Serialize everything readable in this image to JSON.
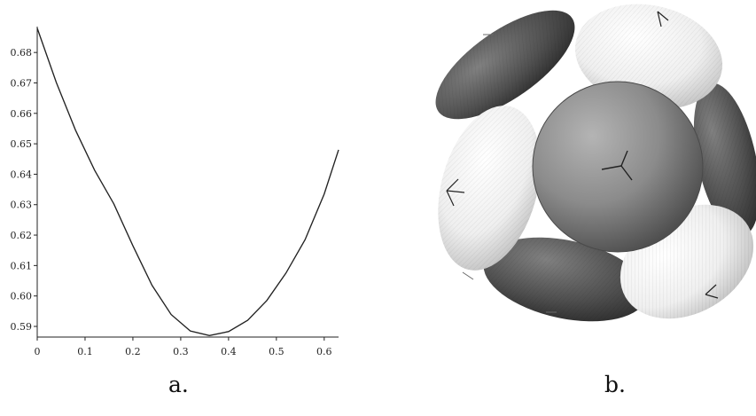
{
  "figure": {
    "panels": [
      {
        "caption": "a.",
        "chart_data": {
          "type": "line",
          "title": "",
          "xlabel": "",
          "ylabel": "",
          "xlim": [
            0,
            0.63
          ],
          "ylim": [
            0.5865,
            0.6885
          ],
          "x_ticks": [
            0,
            0.1,
            0.2,
            0.3,
            0.4,
            0.5,
            0.6
          ],
          "x_tick_labels": [
            "0",
            "0.1",
            "0.2",
            "0.3",
            "0.4",
            "0.5",
            "0.6"
          ],
          "y_ticks": [
            0.59,
            0.6,
            0.61,
            0.62,
            0.63,
            0.64,
            0.65,
            0.66,
            0.67,
            0.68
          ],
          "y_tick_labels": [
            "0.59",
            "0.60",
            "0.61",
            "0.62",
            "0.63",
            "0.64",
            "0.65",
            "0.66",
            "0.67",
            "0.68"
          ],
          "grid": false,
          "series": [
            {
              "line_color": "#222222",
              "x": [
                0,
                0.04,
                0.08,
                0.12,
                0.16,
                0.2,
                0.24,
                0.28,
                0.32,
                0.36,
                0.4,
                0.44,
                0.48,
                0.52,
                0.56,
                0.6,
                0.63
              ],
              "y": [
                0.688,
                0.6701,
                0.6545,
                0.6413,
                0.6303,
                0.6165,
                0.6035,
                0.5939,
                0.5885,
                0.587,
                0.5883,
                0.592,
                0.5985,
                0.6075,
                0.6185,
                0.6335,
                0.648
              ]
            }
          ]
        }
      },
      {
        "caption": "b.",
        "image": {
          "subject": "3d-render",
          "colors": {
            "light_shade": "#f2f2f2",
            "mid_shade": "#8a8a8a",
            "dark_shade": "#3f3f3f",
            "line_color": "#333333"
          }
        }
      }
    ]
  }
}
